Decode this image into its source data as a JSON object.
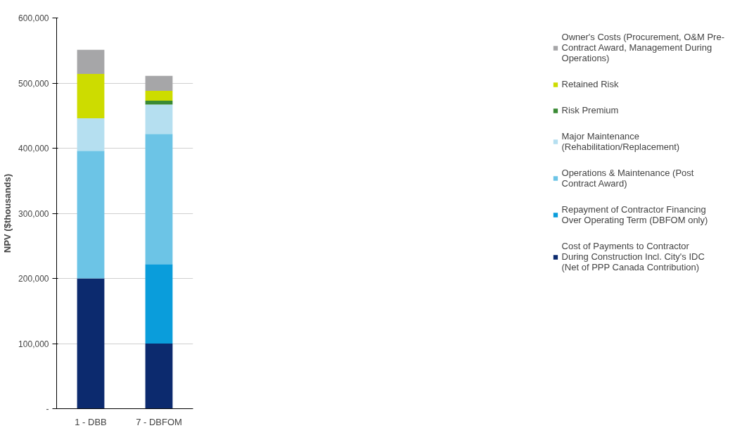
{
  "chart_data": {
    "type": "bar",
    "stacked": true,
    "ylabel": "NPV ($thousands)",
    "categories": [
      "1 - DBB",
      "7 - DBFOM"
    ],
    "series": [
      {
        "name": "Cost of Payments to Contractor During Construction Incl. City's IDC (Net of PPP Canada Contribution)",
        "color": "#0c2a6e",
        "values": [
          200000,
          100000
        ]
      },
      {
        "name": "Repayment of Contractor Financing Over Operating Term (DBFOM only)",
        "color": "#0a9ddb",
        "values": [
          0,
          122000
        ]
      },
      {
        "name": "Operations & Maintenance (Post Contract Award)",
        "color": "#6cc4e6",
        "values": [
          196000,
          200000
        ]
      },
      {
        "name": "Major Maintenance (Rehabilitation/Replacement)",
        "color": "#b5dff0",
        "values": [
          50000,
          45000
        ]
      },
      {
        "name": "Risk Premium",
        "color": "#3a8a34",
        "values": [
          0,
          6000
        ]
      },
      {
        "name": "Retained Risk",
        "color": "#cddc00",
        "values": [
          68000,
          15000
        ]
      },
      {
        "name": "Owner's Costs (Procurement, O&M Pre-Contract Award, Management During Operations)",
        "color": "#a6a6a8",
        "values": [
          37000,
          23000
        ]
      }
    ],
    "ylim": [
      0,
      600000
    ],
    "yticks": [
      {
        "value": 0,
        "label": "-"
      },
      {
        "value": 100000,
        "label": "100,000"
      },
      {
        "value": 200000,
        "label": "200,000"
      },
      {
        "value": 300000,
        "label": "300,000"
      },
      {
        "value": 400000,
        "label": "400,000"
      },
      {
        "value": 500000,
        "label": "500,000"
      },
      {
        "value": 600000,
        "label": "600,000"
      }
    ],
    "grid": "y",
    "legend": "right"
  }
}
